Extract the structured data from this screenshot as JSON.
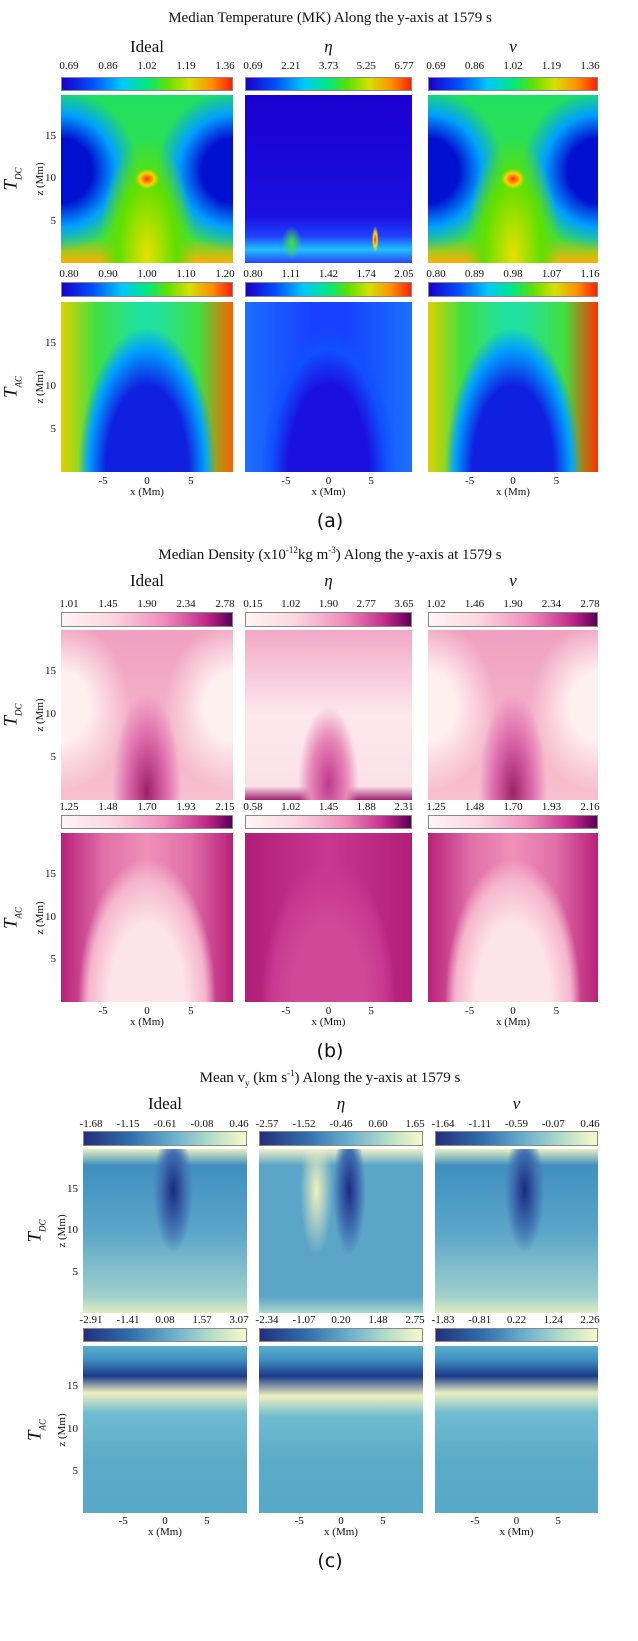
{
  "axes": {
    "xlabel": "x (Mm)",
    "ylabel": "z (Mm)",
    "xticks": [
      -5,
      0,
      5
    ],
    "yticks": [
      5,
      10,
      15
    ],
    "xlim": [
      -9.8,
      9.8
    ],
    "ylim": [
      0,
      19.8
    ]
  },
  "panels": [
    {
      "label": "(a)",
      "title": [
        {
          "text": "Median Temperature (MK) Along the y-axis at 1579 s"
        }
      ],
      "columns": [
        "Ideal",
        "η",
        "ν"
      ],
      "rows": [
        {
          "label": "T",
          "label_sub": "DC",
          "colorbars": [
            [
              "0.69",
              "0.86",
              "1.02",
              "1.19",
              "1.36"
            ],
            [
              "0.69",
              "2.21",
              "3.73",
              "5.25",
              "6.77"
            ],
            [
              "0.69",
              "0.86",
              "1.02",
              "1.19",
              "1.36"
            ]
          ]
        },
        {
          "label": "T",
          "label_sub": "AC",
          "colorbars": [
            [
              "0.80",
              "0.90",
              "1.00",
              "1.10",
              "1.20"
            ],
            [
              "0.80",
              "1.11",
              "1.42",
              "1.74",
              "2.05"
            ],
            [
              "0.80",
              "0.89",
              "0.98",
              "1.07",
              "1.16"
            ]
          ]
        }
      ]
    },
    {
      "label": "(b)",
      "title": [
        {
          "text": "Median Density (x10"
        },
        {
          "sup": "-12"
        },
        {
          "text": "kg m"
        },
        {
          "sup": "-3"
        },
        {
          "text": ") Along the y-axis at 1579 s"
        }
      ],
      "columns": [
        "Ideal",
        "η",
        "ν"
      ],
      "rows": [
        {
          "label": "T",
          "label_sub": "DC",
          "colorbars": [
            [
              "1.01",
              "1.45",
              "1.90",
              "2.34",
              "2.78"
            ],
            [
              "0.15",
              "1.02",
              "1.90",
              "2.77",
              "3.65"
            ],
            [
              "1.02",
              "1.46",
              "1.90",
              "2.34",
              "2.78"
            ]
          ]
        },
        {
          "label": "T",
          "label_sub": "AC",
          "colorbars": [
            [
              "1.25",
              "1.48",
              "1.70",
              "1.93",
              "2.15"
            ],
            [
              "0.58",
              "1.02",
              "1.45",
              "1.88",
              "2.31"
            ],
            [
              "1.25",
              "1.48",
              "1.70",
              "1.93",
              "2.16"
            ]
          ]
        }
      ]
    },
    {
      "label": "(c)",
      "title": [
        {
          "text": "Mean v"
        },
        {
          "sub": "y"
        },
        {
          "text": " (km s"
        },
        {
          "sup": "-1"
        },
        {
          "text": ") Along the y-axis at 1579 s"
        }
      ],
      "columns": [
        "Ideal",
        "η",
        "ν"
      ],
      "rows": [
        {
          "label": "T",
          "label_sub": "DC",
          "colorbars": [
            [
              "-1.68",
              "-1.15",
              "-0.61",
              "-0.08",
              "0.46"
            ],
            [
              "-2.57",
              "-1.52",
              "-0.46",
              "0.60",
              "1.65"
            ],
            [
              "-1.64",
              "-1.11",
              "-0.59",
              "-0.07",
              "0.46"
            ]
          ]
        },
        {
          "label": "T",
          "label_sub": "AC",
          "colorbars": [
            [
              "-2.91",
              "-1.41",
              "0.08",
              "1.57",
              "3.07"
            ],
            [
              "-2.34",
              "-1.07",
              "0.20",
              "1.48",
              "2.75"
            ],
            [
              "-1.83",
              "-0.81",
              "0.22",
              "1.24",
              "2.26"
            ]
          ]
        }
      ]
    }
  ]
}
